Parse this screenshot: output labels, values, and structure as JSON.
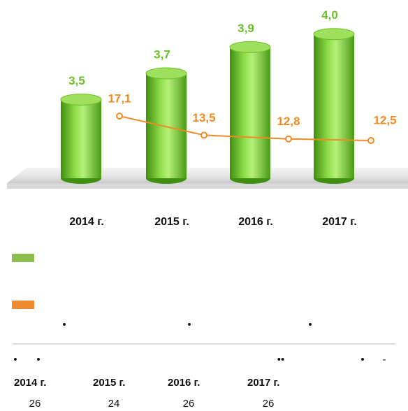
{
  "chart_data": {
    "type": "bar",
    "categories": [
      "2014 г.",
      "2015 г.",
      "2016 г.",
      "2017 г."
    ],
    "series": [
      {
        "type": "bar",
        "color": "#6cc027",
        "values": [
          3.5,
          3.7,
          3.9,
          4.0
        ],
        "value_labels": [
          "3,5",
          "3,7",
          "3,9",
          "4,0"
        ]
      },
      {
        "type": "line",
        "axis": "y2",
        "color": "#f08a24",
        "values": [
          17.1,
          13.5,
          12.8,
          12.5
        ],
        "value_labels": [
          "17,1",
          "13,5",
          "12,8",
          "12,5"
        ]
      }
    ],
    "ylim": [
      2.9,
      4.1
    ],
    "y2lim": [
      5.4,
      35
    ],
    "legend_colors": [
      "#8dbd4f",
      "#ef8a2e"
    ]
  },
  "notes": {
    "bullets_top": [
      "•",
      "•",
      "•"
    ],
    "bullets_bottom": [
      "•",
      "•",
      "••",
      "•",
      "-"
    ],
    "table": {
      "header": [
        "2014 г.",
        "2015 г.",
        "2016 г.",
        "2017 г."
      ],
      "row": [
        "26",
        "24",
        "26",
        "26"
      ]
    }
  }
}
